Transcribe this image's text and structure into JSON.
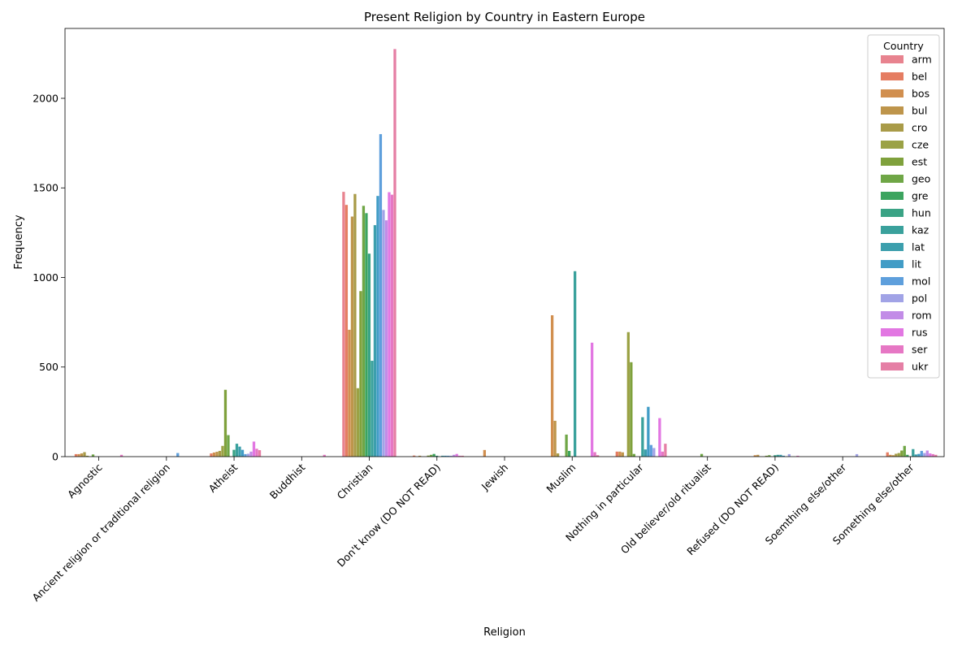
{
  "chart_data": {
    "type": "bar",
    "title": "Present Religion by Country in Eastern Europe",
    "xlabel": "Religion",
    "ylabel": "Frequency",
    "ylim": [
      0,
      2390
    ],
    "yticks": [
      0,
      500,
      1000,
      1500,
      2000
    ],
    "grid": false,
    "legend_title": "Country",
    "legend_position": "top-right",
    "categories": [
      "Agnostic",
      "Ancient religion or traditional religion",
      "Atheist",
      "Buddhist",
      "Christian",
      "Don't know (DO NOT READ)",
      "Jewish",
      "Muslim",
      "Nothing in particular",
      "Old believer/old ritualist",
      "Refused (DO NOT READ)",
      "Soemthing else/other",
      "Something else/other"
    ],
    "series": [
      {
        "name": "arm",
        "color": "#e8838f",
        "values": [
          0,
          0,
          0,
          0,
          1478,
          0,
          0,
          0,
          0,
          0,
          0,
          0,
          0
        ]
      },
      {
        "name": "bel",
        "color": "#e57d62",
        "values": [
          14,
          0,
          18,
          0,
          1405,
          6,
          0,
          0,
          28,
          0,
          0,
          0,
          24
        ]
      },
      {
        "name": "bos",
        "color": "#d18f4f",
        "values": [
          14,
          0,
          23,
          0,
          708,
          0,
          37,
          789,
          28,
          0,
          8,
          0,
          10
        ]
      },
      {
        "name": "bul",
        "color": "#be954b",
        "values": [
          18,
          0,
          27,
          0,
          1340,
          5,
          0,
          200,
          24,
          0,
          10,
          0,
          8
        ]
      },
      {
        "name": "cro",
        "color": "#a99b48",
        "values": [
          25,
          0,
          32,
          0,
          1466,
          0,
          0,
          18,
          0,
          0,
          0,
          0,
          16
        ]
      },
      {
        "name": "cze",
        "color": "#9ba245",
        "values": [
          5,
          0,
          60,
          0,
          382,
          0,
          0,
          0,
          695,
          0,
          0,
          0,
          20
        ]
      },
      {
        "name": "est",
        "color": "#7fa13c",
        "values": [
          0,
          0,
          373,
          0,
          924,
          6,
          0,
          0,
          527,
          0,
          5,
          0,
          34
        ]
      },
      {
        "name": "geo",
        "color": "#6fa646",
        "values": [
          12,
          0,
          120,
          0,
          1400,
          10,
          0,
          123,
          15,
          15,
          8,
          0,
          60
        ]
      },
      {
        "name": "gre",
        "color": "#3ca45f",
        "values": [
          0,
          0,
          0,
          0,
          1359,
          15,
          0,
          32,
          0,
          0,
          0,
          0,
          10
        ]
      },
      {
        "name": "hun",
        "color": "#3aa385",
        "values": [
          0,
          0,
          38,
          0,
          1133,
          5,
          0,
          0,
          0,
          0,
          8,
          0,
          0
        ]
      },
      {
        "name": "kaz",
        "color": "#3aa19c",
        "values": [
          0,
          0,
          72,
          0,
          535,
          0,
          0,
          1035,
          220,
          0,
          10,
          0,
          42
        ]
      },
      {
        "name": "lat",
        "color": "#3c9fad",
        "values": [
          0,
          0,
          56,
          0,
          1292,
          5,
          0,
          0,
          40,
          0,
          10,
          0,
          12
        ]
      },
      {
        "name": "lit",
        "color": "#419cc6",
        "values": [
          0,
          0,
          38,
          0,
          1455,
          5,
          0,
          0,
          278,
          0,
          5,
          0,
          15
        ]
      },
      {
        "name": "mol",
        "color": "#5e9fdc",
        "values": [
          0,
          20,
          14,
          0,
          1800,
          5,
          0,
          0,
          65,
          0,
          0,
          0,
          32
        ]
      },
      {
        "name": "pol",
        "color": "#a1a3e6",
        "values": [
          0,
          0,
          16,
          0,
          1377,
          5,
          0,
          0,
          48,
          0,
          14,
          14,
          20
        ]
      },
      {
        "name": "rom",
        "color": "#c28ce7",
        "values": [
          0,
          0,
          28,
          0,
          1319,
          10,
          0,
          0,
          0,
          0,
          0,
          0,
          34
        ]
      },
      {
        "name": "rus",
        "color": "#e277e2",
        "values": [
          0,
          0,
          84,
          0,
          1476,
          15,
          0,
          636,
          215,
          0,
          0,
          0,
          18
        ]
      },
      {
        "name": "ser",
        "color": "#e677c4",
        "values": [
          10,
          0,
          44,
          10,
          1462,
          5,
          0,
          25,
          28,
          0,
          5,
          0,
          14
        ]
      },
      {
        "name": "ukr",
        "color": "#e57fa5",
        "values": [
          0,
          0,
          36,
          0,
          2275,
          5,
          0,
          8,
          72,
          0,
          0,
          0,
          10
        ]
      }
    ]
  }
}
